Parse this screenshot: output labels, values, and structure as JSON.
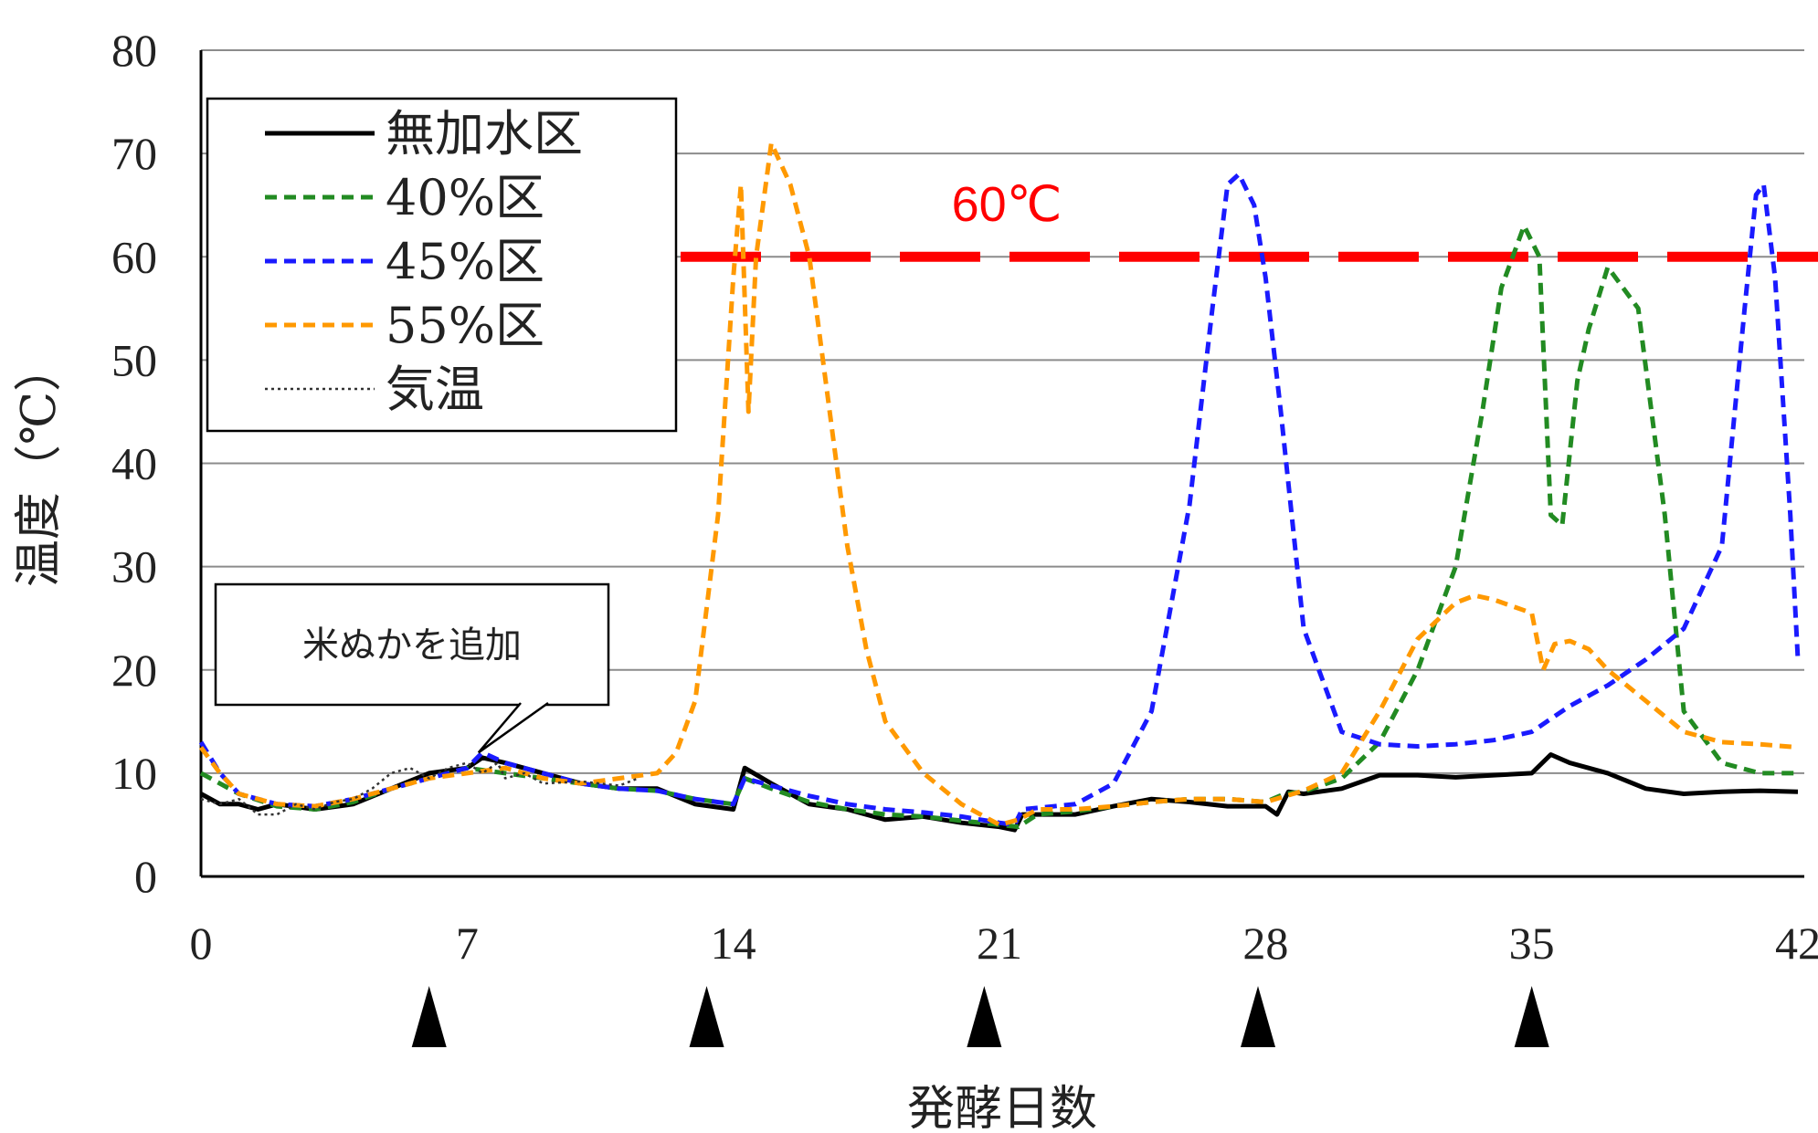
{
  "chart_data": {
    "type": "line",
    "xlabel": "発酵日数",
    "ylabel": "温度（℃）",
    "xlim": [
      0,
      42
    ],
    "ylim": [
      0,
      80
    ],
    "x_ticks": [
      "0",
      "7",
      "14",
      "21",
      "28",
      "35",
      "42"
    ],
    "y_ticks": [
      "0",
      "10",
      "20",
      "30",
      "40",
      "50",
      "60",
      "70",
      "80"
    ],
    "grid": "horizontal",
    "legend_position": "top-left",
    "threshold": {
      "value": 60,
      "label": "60℃",
      "color": "#ff0000"
    },
    "callout": {
      "text": "米ぬかを追加",
      "x": 7.3,
      "y": 12
    },
    "markers": [
      6,
      13.3,
      20.6,
      27.8,
      35
    ],
    "series": [
      {
        "name": "無加水区",
        "color": "#000000",
        "style": "solid",
        "points": [
          [
            0,
            8
          ],
          [
            0.5,
            7
          ],
          [
            1,
            7
          ],
          [
            1.5,
            6.5
          ],
          [
            2,
            7
          ],
          [
            3,
            6.5
          ],
          [
            4,
            7
          ],
          [
            5,
            8.5
          ],
          [
            6,
            10
          ],
          [
            7,
            10.5
          ],
          [
            7.4,
            11.5
          ],
          [
            8,
            11
          ],
          [
            9,
            10
          ],
          [
            10,
            9
          ],
          [
            11,
            8.5
          ],
          [
            12,
            8.5
          ],
          [
            13,
            7
          ],
          [
            14,
            6.5
          ],
          [
            14.3,
            10.5
          ],
          [
            15,
            9
          ],
          [
            16,
            7
          ],
          [
            17,
            6.5
          ],
          [
            18,
            5.5
          ],
          [
            19,
            5.8
          ],
          [
            20,
            5.2
          ],
          [
            21,
            4.8
          ],
          [
            21.4,
            4.5
          ],
          [
            21.6,
            6
          ],
          [
            23,
            6
          ],
          [
            24,
            6.8
          ],
          [
            25,
            7.5
          ],
          [
            26,
            7.2
          ],
          [
            27,
            6.8
          ],
          [
            28,
            6.8
          ],
          [
            28.3,
            6
          ],
          [
            28.6,
            8.2
          ],
          [
            29,
            8
          ],
          [
            30,
            8.5
          ],
          [
            31,
            9.8
          ],
          [
            32,
            9.8
          ],
          [
            33,
            9.6
          ],
          [
            34,
            9.8
          ],
          [
            35,
            10
          ],
          [
            35.5,
            11.8
          ],
          [
            36,
            11
          ],
          [
            37,
            10
          ],
          [
            38,
            8.5
          ],
          [
            39,
            8
          ],
          [
            40,
            8.2
          ],
          [
            41,
            8.3
          ],
          [
            42,
            8.2
          ]
        ]
      },
      {
        "name": "40%区",
        "color": "#228b22",
        "style": "dashed",
        "points": [
          [
            0,
            10
          ],
          [
            1,
            8
          ],
          [
            2,
            6.8
          ],
          [
            3,
            6.5
          ],
          [
            4,
            7.2
          ],
          [
            5,
            8.5
          ],
          [
            6,
            9.5
          ],
          [
            7,
            10.5
          ],
          [
            8,
            10
          ],
          [
            9,
            9.5
          ],
          [
            10,
            9
          ],
          [
            11,
            8.5
          ],
          [
            12,
            8.3
          ],
          [
            13,
            7.5
          ],
          [
            14,
            7
          ],
          [
            14.3,
            9.5
          ],
          [
            15,
            8.5
          ],
          [
            16,
            7.2
          ],
          [
            17,
            6.5
          ],
          [
            18,
            6
          ],
          [
            19,
            5.8
          ],
          [
            20,
            5.4
          ],
          [
            21,
            5
          ],
          [
            21.5,
            4.8
          ],
          [
            22,
            6
          ],
          [
            23,
            6.3
          ],
          [
            24,
            6.8
          ],
          [
            25,
            7.2
          ],
          [
            26,
            7.5
          ],
          [
            27,
            7.5
          ],
          [
            28,
            7.2
          ],
          [
            28.5,
            8
          ],
          [
            29,
            8.2
          ],
          [
            30,
            9.5
          ],
          [
            31,
            13
          ],
          [
            32,
            20
          ],
          [
            33,
            30
          ],
          [
            33.7,
            45
          ],
          [
            34.2,
            57
          ],
          [
            34.8,
            63
          ],
          [
            35.2,
            60
          ],
          [
            35.5,
            35
          ],
          [
            35.8,
            34
          ],
          [
            36.2,
            48
          ],
          [
            36.5,
            53
          ],
          [
            37,
            59
          ],
          [
            37.8,
            55
          ],
          [
            38.5,
            35
          ],
          [
            39,
            16
          ],
          [
            40,
            11
          ],
          [
            41,
            10
          ],
          [
            42,
            10
          ]
        ]
      },
      {
        "name": "45%区",
        "color": "#1a1aff",
        "style": "dashed",
        "points": [
          [
            0,
            13
          ],
          [
            0.5,
            10
          ],
          [
            1,
            8
          ],
          [
            2,
            7
          ],
          [
            3,
            6.8
          ],
          [
            4,
            7.5
          ],
          [
            5,
            8.5
          ],
          [
            6,
            9.5
          ],
          [
            7,
            10.5
          ],
          [
            7.4,
            12
          ],
          [
            8,
            11
          ],
          [
            9,
            10
          ],
          [
            10,
            9
          ],
          [
            11,
            8.5
          ],
          [
            12,
            8.3
          ],
          [
            13,
            7.5
          ],
          [
            14,
            7
          ],
          [
            14.3,
            9.5
          ],
          [
            15,
            8.8
          ],
          [
            16,
            7.8
          ],
          [
            17,
            7
          ],
          [
            18,
            6.5
          ],
          [
            19,
            6.2
          ],
          [
            20,
            5.8
          ],
          [
            21,
            5.2
          ],
          [
            21.4,
            5
          ],
          [
            21.6,
            6.5
          ],
          [
            23,
            7
          ],
          [
            24,
            9
          ],
          [
            25,
            16
          ],
          [
            26,
            36
          ],
          [
            26.6,
            55
          ],
          [
            27,
            67
          ],
          [
            27.3,
            68
          ],
          [
            27.7,
            65
          ],
          [
            28,
            58
          ],
          [
            28.4,
            45
          ],
          [
            29,
            24
          ],
          [
            30,
            14
          ],
          [
            31,
            12.8
          ],
          [
            32,
            12.6
          ],
          [
            33,
            12.8
          ],
          [
            34,
            13.2
          ],
          [
            35,
            14
          ],
          [
            36,
            16.5
          ],
          [
            37,
            18.5
          ],
          [
            38,
            21
          ],
          [
            39,
            24
          ],
          [
            40,
            32
          ],
          [
            40.6,
            55
          ],
          [
            40.9,
            66
          ],
          [
            41.1,
            67
          ],
          [
            41.4,
            58
          ],
          [
            41.8,
            35
          ],
          [
            42,
            21
          ]
        ]
      },
      {
        "name": "55%区",
        "color": "#ff9900",
        "style": "dashed",
        "points": [
          [
            0,
            12.5
          ],
          [
            0.5,
            10
          ],
          [
            1,
            8
          ],
          [
            2,
            7
          ],
          [
            3,
            6.8
          ],
          [
            4,
            7.5
          ],
          [
            5,
            8.5
          ],
          [
            6,
            9.5
          ],
          [
            7,
            10
          ],
          [
            8,
            10.5
          ],
          [
            9,
            9.5
          ],
          [
            10,
            9
          ],
          [
            11,
            9.5
          ],
          [
            12,
            10
          ],
          [
            12.5,
            12
          ],
          [
            13,
            17
          ],
          [
            13.6,
            35
          ],
          [
            14,
            58
          ],
          [
            14.2,
            67
          ],
          [
            14.4,
            45
          ],
          [
            14.6,
            60
          ],
          [
            15,
            71
          ],
          [
            15.5,
            67
          ],
          [
            16,
            60
          ],
          [
            16.5,
            46
          ],
          [
            17,
            32
          ],
          [
            17.5,
            22
          ],
          [
            18,
            15
          ],
          [
            19,
            10
          ],
          [
            20,
            7
          ],
          [
            21,
            5
          ],
          [
            21.5,
            5.5
          ],
          [
            22,
            6.5
          ],
          [
            23,
            6.5
          ],
          [
            24,
            6.8
          ],
          [
            25,
            7.2
          ],
          [
            26,
            7.5
          ],
          [
            27,
            7.5
          ],
          [
            28,
            7.2
          ],
          [
            29,
            8.3
          ],
          [
            30,
            10
          ],
          [
            31,
            16
          ],
          [
            32,
            23
          ],
          [
            33,
            26.5
          ],
          [
            33.5,
            27.2
          ],
          [
            34,
            26.8
          ],
          [
            35,
            25.5
          ],
          [
            35.3,
            20
          ],
          [
            35.6,
            22.5
          ],
          [
            36,
            22.8
          ],
          [
            36.5,
            22
          ],
          [
            37,
            20
          ],
          [
            38,
            17
          ],
          [
            39,
            14
          ],
          [
            40,
            13
          ],
          [
            41,
            12.8
          ],
          [
            42,
            12.5
          ]
        ]
      },
      {
        "name": "気温",
        "color": "#333333",
        "style": "dotted",
        "points": [
          [
            0,
            7.5
          ],
          [
            0.5,
            7
          ],
          [
            1,
            7.5
          ],
          [
            1.5,
            6
          ],
          [
            2,
            6
          ],
          [
            2.5,
            7
          ],
          [
            3,
            6.5
          ],
          [
            3.5,
            7.2
          ],
          [
            4,
            7.5
          ],
          [
            4.5,
            8.5
          ],
          [
            5,
            10
          ],
          [
            5.5,
            10.5
          ],
          [
            6,
            9.5
          ],
          [
            6.5,
            10.5
          ],
          [
            7,
            11
          ],
          [
            7.4,
            10
          ],
          [
            7.8,
            11
          ],
          [
            8,
            9.5
          ],
          [
            8.5,
            10
          ],
          [
            9,
            9
          ],
          [
            10,
            9.2
          ],
          [
            11,
            8.8
          ],
          [
            11.5,
            9.5
          ]
        ]
      }
    ]
  }
}
